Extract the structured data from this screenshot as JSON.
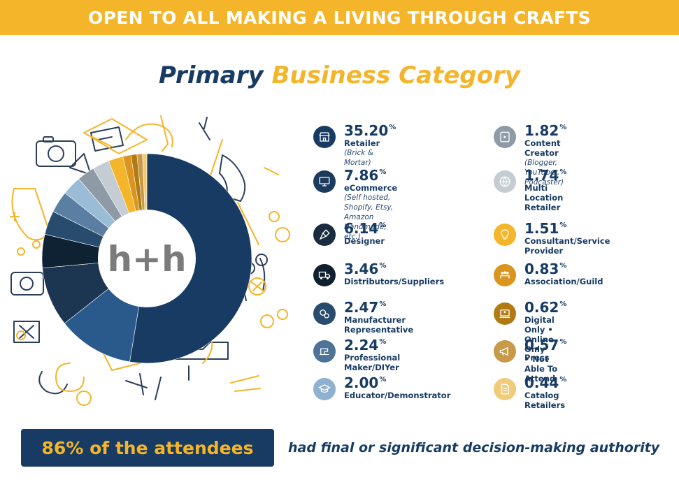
{
  "banner": {
    "text": "OPEN TO ALL MAKING A LIVING THROUGH CRAFTS"
  },
  "title": {
    "part1": "Primary",
    "part2": "Business Category"
  },
  "logo": {
    "text": "h+h"
  },
  "colors": {
    "navy": "#173b63",
    "gold": "#f4b52a",
    "white": "#ffffff"
  },
  "chart_data": {
    "type": "pie",
    "title": "Primary Business Category",
    "unit": "%",
    "categories": [
      "Retailer",
      "eCommerce",
      "Designer",
      "Distributors/Suppliers",
      "Manufacturer Representative",
      "Professional Maker/DIYer",
      "Educator/Demonstrator",
      "Content Creator",
      "Multi Location Retailer",
      "Consultant/Service Provider",
      "Association/Guild",
      "Digital Only • Online Only • Not Able To Attend",
      "Press",
      "Catalog Retailers"
    ],
    "values": [
      35.2,
      7.86,
      6.14,
      3.46,
      2.47,
      2.24,
      2.0,
      1.82,
      1.74,
      1.51,
      0.83,
      0.62,
      0.57,
      0.44
    ],
    "colors": [
      "#173b63",
      "#2a5a8c",
      "#1c3550",
      "#0f2233",
      "#274c6e",
      "#5b7fa3",
      "#9bbcd6",
      "#8e9aa6",
      "#c4ccd4",
      "#f4b52a",
      "#d9951e",
      "#b27a12",
      "#c89a47",
      "#f0cc7a"
    ]
  },
  "legend": {
    "items": [
      {
        "value": "35.20",
        "label": "Retailer",
        "sub": "(Brick & Mortar)",
        "icon": "storefront-icon",
        "color": "#173b63"
      },
      {
        "value": "7.86",
        "label": "eCommerce",
        "sub": "(Self hosted, Shopify, Etsy,\nAmazon Handmade, etc.)",
        "icon": "monitor-icon",
        "color": "#1c3a5c"
      },
      {
        "value": "6.14",
        "label": "Designer",
        "sub": "",
        "icon": "pen-tool-icon",
        "color": "#1b2c40"
      },
      {
        "value": "3.46",
        "label": "Distributors/Suppliers",
        "sub": "",
        "icon": "truck-icon",
        "color": "#10202f"
      },
      {
        "value": "2.47",
        "label": "Manufacturer Representative",
        "sub": "",
        "icon": "gears-icon",
        "color": "#274c6e"
      },
      {
        "value": "2.24",
        "label": "Professional Maker/DIYer",
        "sub": "",
        "icon": "sewing-machine-icon",
        "color": "#4e7398"
      },
      {
        "value": "2.00",
        "label": "Educator/Demonstrator",
        "sub": "",
        "icon": "graduation-cap-icon",
        "color": "#8fb1cf"
      },
      {
        "value": "1.82",
        "label": "Content Creator",
        "sub": "(Blogger, YouTuber,\nPodcaster)",
        "icon": "video-icon",
        "color": "#8e9aa6"
      },
      {
        "value": "1.74",
        "label": "Multi Location Retailer",
        "sub": "",
        "icon": "globe-icon",
        "color": "#c4ccd4"
      },
      {
        "value": "1.51",
        "label": "Consultant/Service Provider",
        "sub": "",
        "icon": "lightbulb-icon",
        "color": "#f4b52a"
      },
      {
        "value": "0.83",
        "label": "Association/Guild",
        "sub": "",
        "icon": "group-icon",
        "color": "#d9951e"
      },
      {
        "value": "0.62",
        "label": "Digital Only • Online Only\n• Not Able To Attend",
        "sub": "",
        "icon": "laptop-user-icon",
        "color": "#b27a12"
      },
      {
        "value": "0.57",
        "label": "Press",
        "sub": "",
        "icon": "megaphone-icon",
        "color": "#c89a47"
      },
      {
        "value": "0.44",
        "label": "Catalog Retailers",
        "sub": "",
        "icon": "document-icon",
        "color": "#f0cc7a"
      }
    ]
  },
  "footer": {
    "highlight": "86% of the attendees",
    "text": "had final or significant decision-making authority"
  }
}
